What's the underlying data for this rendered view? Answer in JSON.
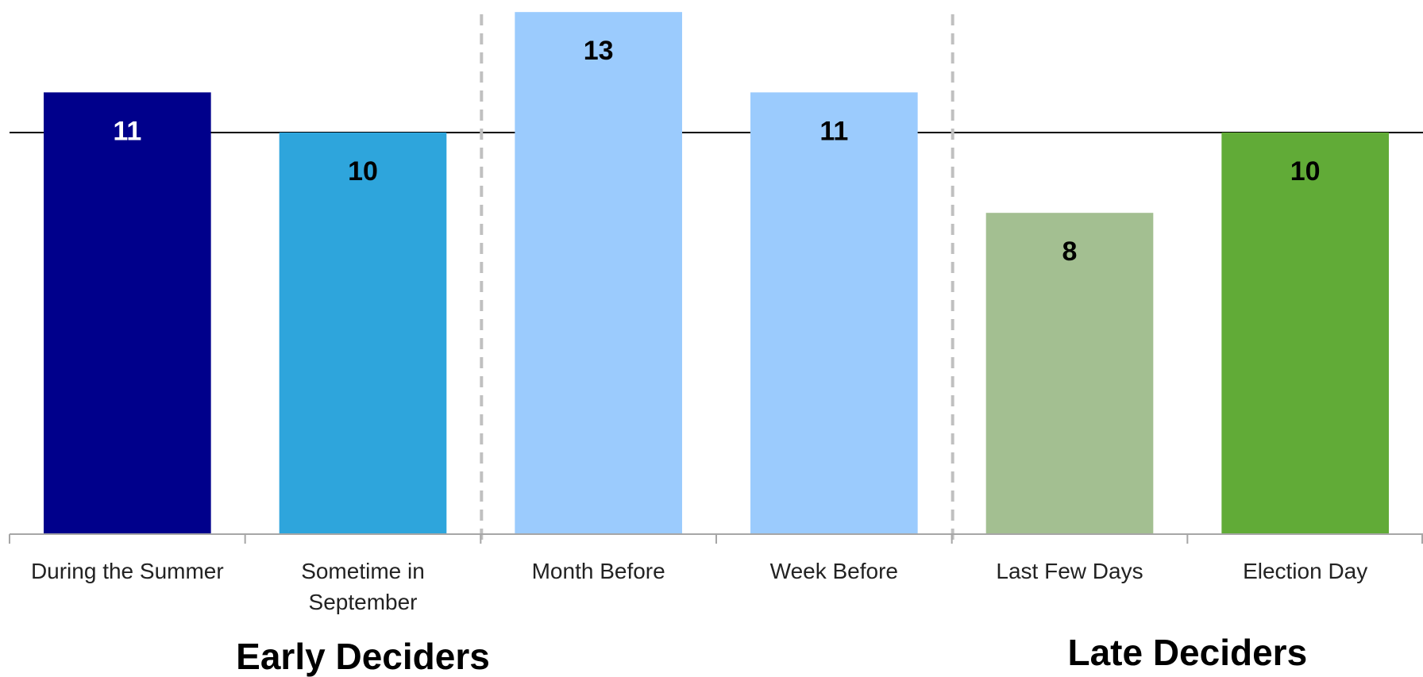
{
  "chart_data": {
    "type": "bar",
    "categories": [
      [
        "During the Summer"
      ],
      [
        "Sometime in",
        "September"
      ],
      [
        "Month Before"
      ],
      [
        "Week Before"
      ],
      [
        "Last Few Days"
      ],
      [
        "Election Day"
      ]
    ],
    "values": [
      11,
      10,
      13,
      11,
      8,
      10
    ],
    "bar_colors": [
      "#00008B",
      "#2EA5DC",
      "#9BCBFD",
      "#9BCBFD",
      "#A3BF91",
      "#61AB37"
    ],
    "data_label_colors": [
      "#FFFFFF",
      "#000000",
      "#000000",
      "#000000",
      "#000000",
      "#000000"
    ],
    "ylim": [
      0,
      13.3
    ],
    "reference_line": 10,
    "group_dividers_after": [
      2,
      4
    ],
    "groups": [
      {
        "label": "Early Deciders",
        "from": 0,
        "to": 2
      },
      {
        "label": "Late Deciders",
        "from": 4,
        "to": 5
      }
    ],
    "title": "",
    "xlabel": "",
    "ylabel": "",
    "grid": false,
    "colors": {
      "axis": "#A6A6A6",
      "reference_line": "#000000",
      "divider": "#C0C0C0"
    }
  }
}
